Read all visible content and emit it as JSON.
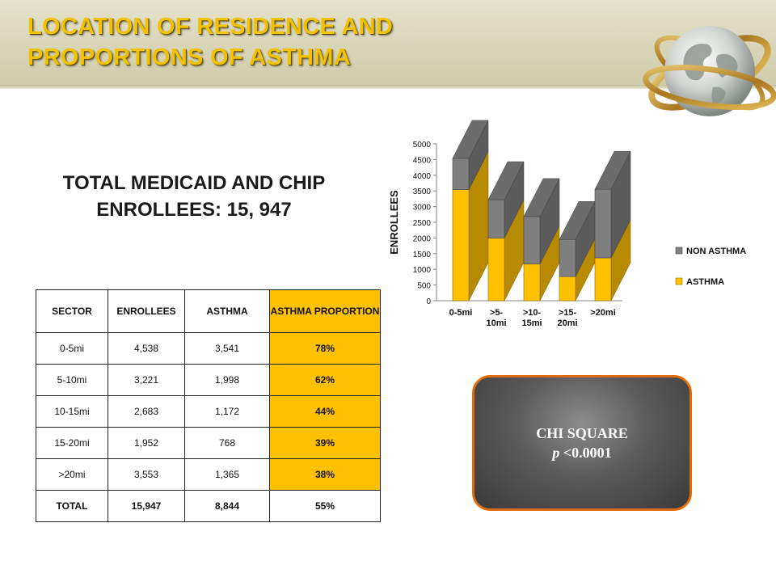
{
  "slide": {
    "title_line1": "LOCATION OF RESIDENCE AND",
    "title_line2": "PROPORTIONS OF ASTHMA",
    "enrollees_line1": "TOTAL MEDICAID AND CHIP",
    "enrollees_line2": "ENROLLEES: 15, 947"
  },
  "table": {
    "headers": [
      "SECTOR",
      "ENROLLEES",
      "ASTHMA",
      "ASTHMA PROPORTION"
    ],
    "rows": [
      [
        "0-5mi",
        "4,538",
        "3,541",
        "78%"
      ],
      [
        "5-10mi",
        "3,221",
        "1,998",
        "62%"
      ],
      [
        "10-15mi",
        "2,683",
        "1,172",
        "44%"
      ],
      [
        "15-20mi",
        "1,952",
        "768",
        "39%"
      ],
      [
        ">20mi",
        "3,553",
        "1,365",
        "38%"
      ]
    ],
    "total": [
      "TOTAL",
      "15,947",
      "8,844",
      "55%"
    ]
  },
  "chi_square": {
    "label": "CHI SQUARE",
    "p_symbol": "p",
    "p_value": "<0.0001"
  },
  "colors": {
    "asthma": "#ffc000",
    "non_asthma": "#7f7f7f",
    "highlight": "#ffc000",
    "title": "#f2c200",
    "chi_border": "#e36c0a"
  },
  "chart_data": {
    "type": "bar",
    "stacked": true,
    "style": "3d",
    "categories": [
      "0-5mi",
      ">5-10mi",
      ">10-15mi",
      ">15-20mi",
      ">20mi"
    ],
    "category_lines": [
      [
        "0-5mi"
      ],
      [
        ">5-",
        "10mi"
      ],
      [
        ">10-",
        "15mi"
      ],
      [
        ">15-",
        "20mi"
      ],
      [
        ">20mi"
      ]
    ],
    "series": [
      {
        "name": "ASTHMA",
        "values": [
          3541,
          1998,
          1172,
          768,
          1365
        ]
      },
      {
        "name": "NON ASTHMA",
        "values": [
          997,
          1223,
          1511,
          1184,
          2188
        ]
      }
    ],
    "legend_order": [
      "NON ASTHMA",
      "ASTHMA"
    ],
    "ylabel": "ENROLLEES",
    "xlabel": "",
    "ylim": [
      0,
      5000
    ],
    "yticks": [
      0,
      500,
      1000,
      1500,
      2000,
      2500,
      3000,
      3500,
      4000,
      4500,
      5000
    ],
    "grid": false,
    "legend_position": "right"
  }
}
